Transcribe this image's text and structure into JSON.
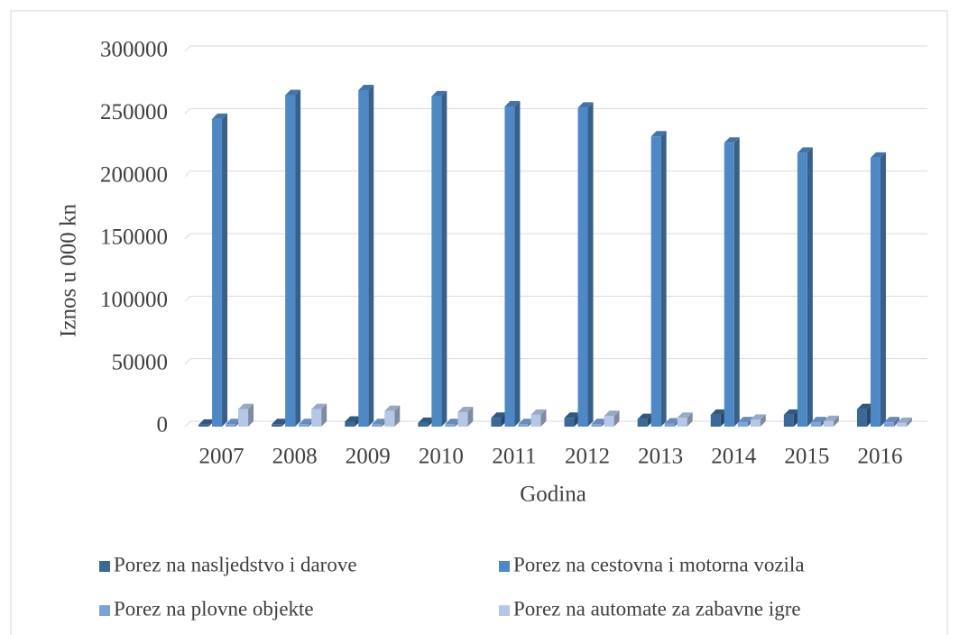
{
  "chart_data": {
    "type": "bar3d",
    "y_label": "Iznos u 000 kn",
    "x_label": "Godina",
    "categories": [
      "2007",
      "2008",
      "2009",
      "2010",
      "2011",
      "2012",
      "2013",
      "2014",
      "2015",
      "2016"
    ],
    "series": [
      {
        "name": "Porez na nasljedstvo i darove",
        "color": "#3b6896",
        "values": [
          1500,
          2000,
          4000,
          3000,
          7000,
          7000,
          6000,
          9500,
          9500,
          14000
        ]
      },
      {
        "name": "Porez na cestovna i motorna vozila",
        "color": "#4f89c5",
        "values": [
          246000,
          265000,
          269000,
          264000,
          256000,
          255000,
          232000,
          227000,
          219000,
          215000
        ]
      },
      {
        "name": "Porez na plovne objekte",
        "color": "#7ba3d9",
        "values": [
          2000,
          2000,
          2000,
          2000,
          2000,
          2000,
          2500,
          3500,
          3500,
          3500
        ]
      },
      {
        "name": "Porez na automate za zabavne igre",
        "color": "#b4c7e7",
        "values": [
          14000,
          14000,
          12500,
          11500,
          9500,
          8500,
          7000,
          5500,
          4500,
          3000
        ]
      }
    ],
    "ylim": [
      0,
      300000
    ],
    "yticks": [
      0,
      50000,
      100000,
      150000,
      200000,
      250000,
      300000
    ],
    "grid": true
  }
}
